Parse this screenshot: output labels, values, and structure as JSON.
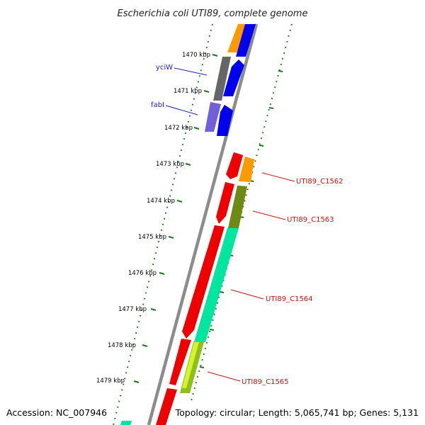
{
  "title": "Escherichia coli UTI89, complete genome",
  "footer": {
    "accession": "Accession: NC_007946",
    "topology": "Topology: circular; Length: 5,065,741 bp; Genes: 5,131"
  },
  "colors": {
    "backbone": "#8c8c8c",
    "tick": "#1a7a1a",
    "blue_label": "#1f1fc8",
    "red_label": "#d01010"
  },
  "positions": [
    {
      "label": "1470 kbp"
    },
    {
      "label": "1471 kbp"
    },
    {
      "label": "1472 kbp"
    },
    {
      "label": "1473 kbp"
    },
    {
      "label": "1474 kbp"
    },
    {
      "label": "1475 kbp"
    },
    {
      "label": "1476 kbp"
    },
    {
      "label": "1477 kbp"
    },
    {
      "label": "1478 kbp"
    },
    {
      "label": "1479 kbp"
    }
  ],
  "gene_labels": [
    {
      "text": "yciW",
      "color": "blue"
    },
    {
      "text": "fabI",
      "color": "blue"
    },
    {
      "text": "UTI89_C1562",
      "color": "red"
    },
    {
      "text": "UTI89_C1563",
      "color": "red"
    },
    {
      "text": "UTI89_C1564",
      "color": "red"
    },
    {
      "text": "UTI89_C1565",
      "color": "red"
    }
  ]
}
